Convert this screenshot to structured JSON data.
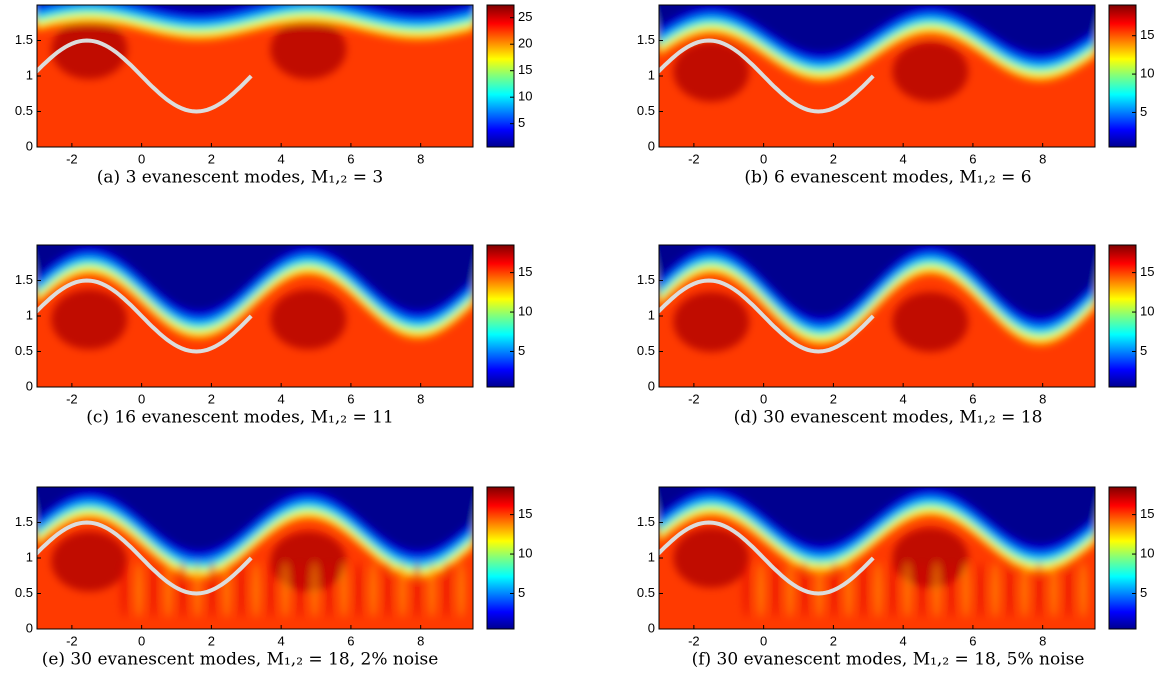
{
  "chart_data": [
    {
      "type": "heatmap",
      "caption": "(a) 3 evanescent modes, M₁,₂ = 3",
      "xlim": [
        -3,
        9.5
      ],
      "ylim": [
        0,
        2
      ],
      "xticks": [
        -2,
        0,
        2,
        4,
        6,
        8
      ],
      "yticks": [
        0,
        0.5,
        1,
        1.5
      ],
      "clim": [
        0.6,
        27.4
      ],
      "cticks": [
        5,
        10,
        15,
        20,
        25
      ]
    },
    {
      "type": "heatmap",
      "caption": "(b) 6 evanescent modes, M₁,₂ = 6",
      "xlim": [
        -3,
        9.5
      ],
      "ylim": [
        0,
        2
      ],
      "xticks": [
        -2,
        0,
        2,
        4,
        6,
        8
      ],
      "yticks": [
        0,
        0.5,
        1,
        1.5
      ],
      "clim": [
        0.5,
        19
      ],
      "cticks": [
        5,
        10,
        15
      ]
    },
    {
      "type": "heatmap",
      "caption": "(c) 16 evanescent modes, M₁,₂ = 11",
      "xlim": [
        -3,
        9.5
      ],
      "ylim": [
        0,
        2
      ],
      "xticks": [
        -2,
        0,
        2,
        4,
        6,
        8
      ],
      "yticks": [
        0,
        0.5,
        1,
        1.5
      ],
      "clim": [
        0.5,
        18.5
      ],
      "cticks": [
        5,
        10,
        15
      ]
    },
    {
      "type": "heatmap",
      "caption": "(d) 30 evanescent modes, M₁,₂ = 18",
      "xlim": [
        -3,
        9.5
      ],
      "ylim": [
        0,
        2
      ],
      "xticks": [
        -2,
        0,
        2,
        4,
        6,
        8
      ],
      "yticks": [
        0,
        0.5,
        1,
        1.5
      ],
      "clim": [
        0.5,
        18.5
      ],
      "cticks": [
        5,
        10,
        15
      ]
    },
    {
      "type": "heatmap",
      "caption": "(e) 30 evanescent modes, M₁,₂ = 18, 2% noise",
      "xlim": [
        -3,
        9.5
      ],
      "ylim": [
        0,
        2
      ],
      "xticks": [
        -2,
        0,
        2,
        4,
        6,
        8
      ],
      "yticks": [
        0,
        0.5,
        1,
        1.5
      ],
      "clim": [
        0.5,
        18.5
      ],
      "cticks": [
        5,
        10,
        15
      ]
    },
    {
      "type": "heatmap",
      "caption": "(f) 30 evanescent modes, M₁,₂ = 18, 5% noise",
      "xlim": [
        -3,
        9.5
      ],
      "ylim": [
        0,
        2
      ],
      "xticks": [
        -2,
        0,
        2,
        4,
        6,
        8
      ],
      "yticks": [
        0,
        0.5,
        1,
        1.5
      ],
      "clim": [
        0.5,
        18.5
      ],
      "cticks": [
        5,
        10,
        15
      ]
    }
  ]
}
